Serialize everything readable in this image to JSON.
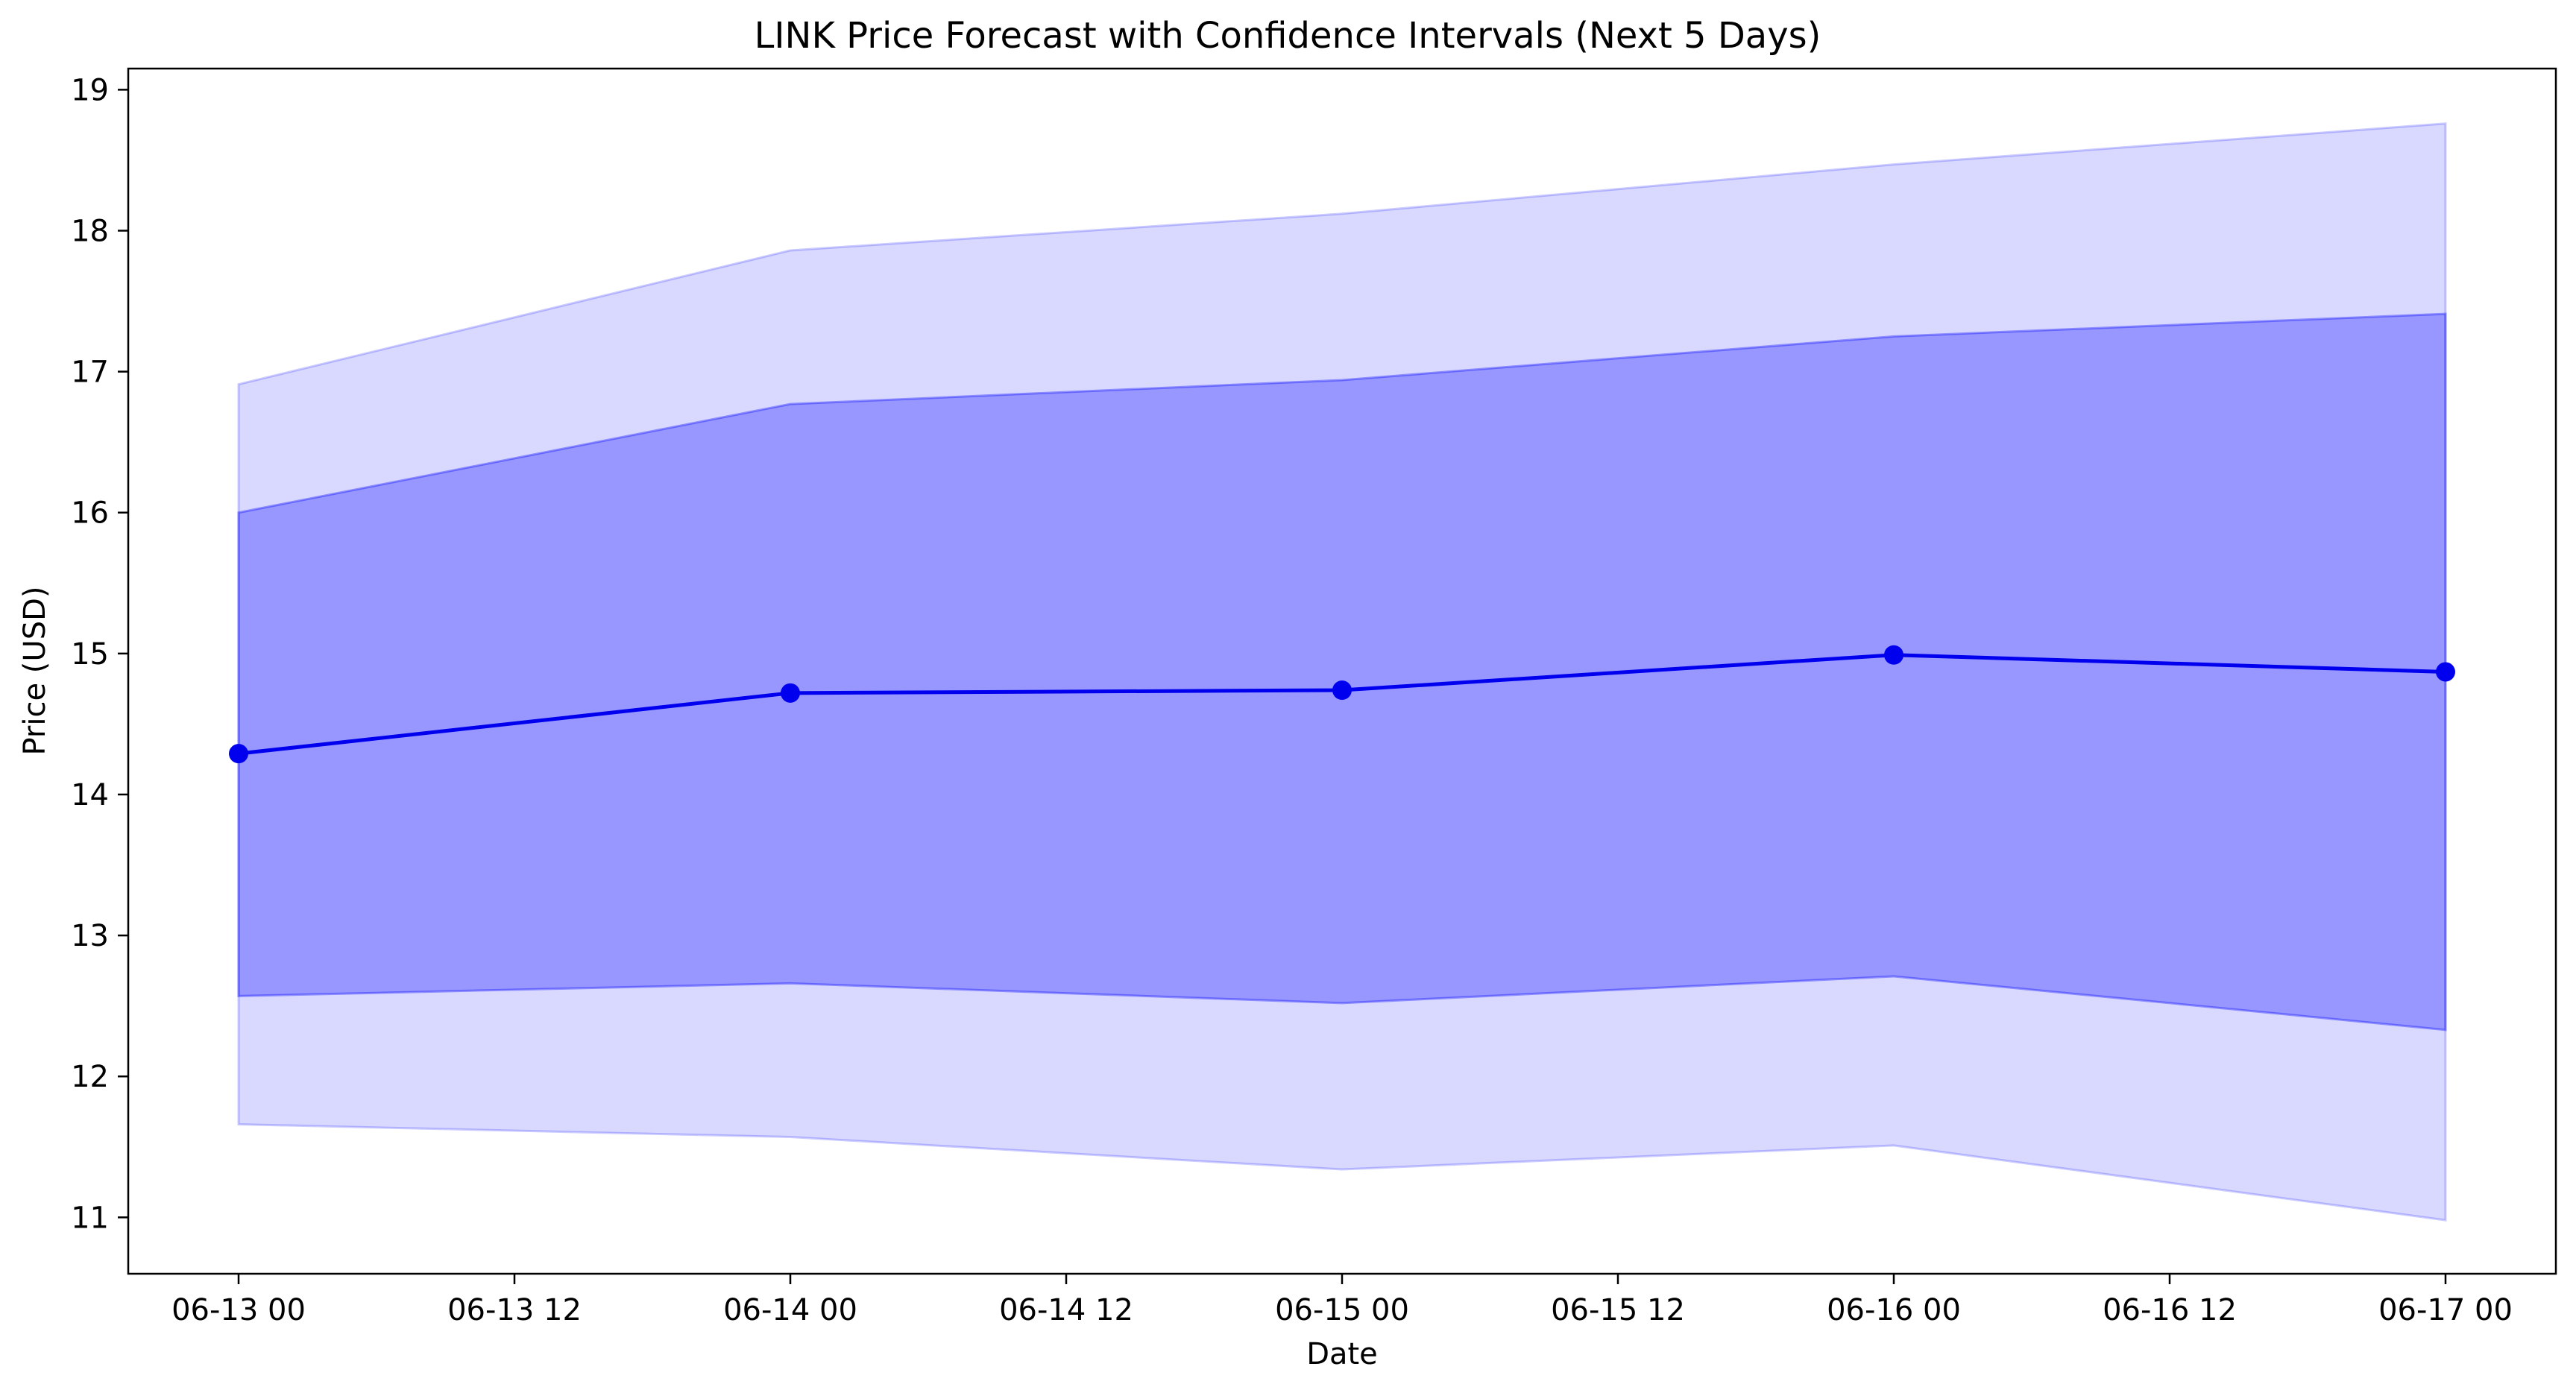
{
  "chart_data": {
    "type": "line",
    "title": "LINK Price Forecast with Confidence Intervals (Next 5 Days)",
    "xlabel": "Date",
    "ylabel": "Price (USD)",
    "x": [
      "2024-06-13 00:00",
      "2024-06-14 00:00",
      "2024-06-15 00:00",
      "2024-06-16 00:00",
      "2024-06-17 00:00"
    ],
    "x_tick_labels": [
      "06-13 00",
      "06-13 12",
      "06-14 00",
      "06-14 12",
      "06-15 00",
      "06-15 12",
      "06-16 00",
      "06-16 12",
      "06-17 00"
    ],
    "x_range": [
      "2024-06-12 19:12",
      "2024-06-17 04:48"
    ],
    "y_ticks": [
      11,
      12,
      13,
      14,
      15,
      16,
      17,
      18,
      19
    ],
    "ylim": [
      10.6,
      19.15
    ],
    "grid": false,
    "series": [
      {
        "values": [
          14.29,
          14.72,
          14.74,
          14.99,
          14.87
        ],
        "color": "#0000ee",
        "marker": "circle"
      }
    ],
    "bands": [
      {
        "lower": [
          11.66,
          11.57,
          11.34,
          11.51,
          10.98
        ],
        "upper": [
          16.91,
          17.86,
          18.12,
          18.47,
          18.76
        ],
        "color": "#0000ff",
        "opacity": 0.15
      },
      {
        "lower": [
          12.57,
          12.66,
          12.52,
          12.71,
          12.33
        ],
        "upper": [
          16.0,
          16.77,
          16.94,
          17.25,
          17.41
        ],
        "color": "#0000ff",
        "opacity": 0.3
      }
    ]
  }
}
